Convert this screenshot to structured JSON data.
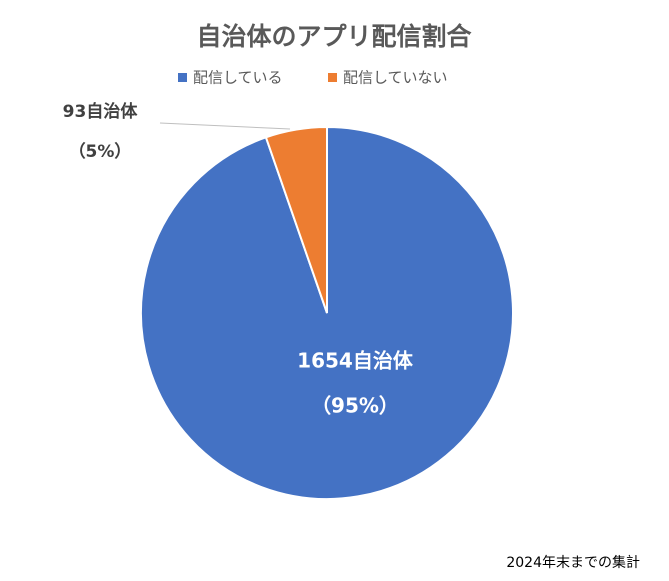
{
  "chart_data": {
    "type": "pie",
    "title": "自治体のアプリ配信割合",
    "categories": [
      "配信している",
      "配信していない"
    ],
    "values": [
      1654,
      93
    ],
    "value_labels": [
      "1654自治体",
      "93自治体"
    ],
    "percent_labels": [
      "（95%）",
      "（5%）"
    ],
    "colors": [
      "#4472c4",
      "#ed7d31"
    ],
    "legend": "top",
    "note": "2024年末までの集計"
  }
}
